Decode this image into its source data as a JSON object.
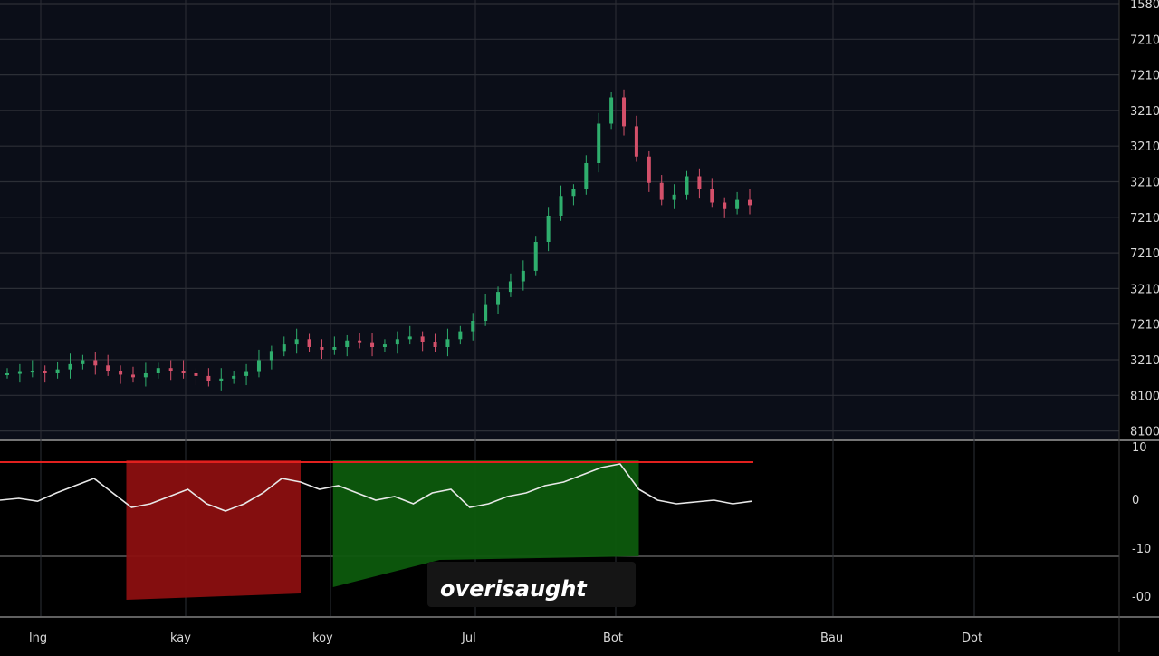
{
  "colors": {
    "background": "#000000",
    "price_panel_bg": "#0b0e18",
    "grid": "#2c2f36",
    "candle_up": "#2fae6d",
    "candle_down": "#d4506a",
    "oscillator_line": "#e8e8e8",
    "overbought_level": "#e0201e",
    "red_zone": "#8b0f10",
    "green_zone": "#0d5a0d",
    "tag_bg": "#151515",
    "axis_text": "#d9d9d9"
  },
  "chart_data": [
    {
      "type": "candlestick",
      "panel": "price",
      "price_axis_labels": [
        "1580",
        "7210",
        "7210",
        "3210",
        "3210",
        "3210",
        "7210",
        "7210",
        "3210",
        "7210",
        "3210",
        "8100",
        "8100"
      ],
      "close_trend": [
        40,
        41,
        42,
        40,
        43,
        47,
        50,
        46,
        42,
        39,
        37,
        40,
        44,
        42,
        40,
        38,
        34,
        36,
        38,
        41,
        50,
        57,
        62,
        66,
        60,
        58,
        60,
        65,
        63,
        60,
        62,
        66,
        68,
        64,
        60,
        66,
        72,
        80,
        92,
        102,
        110,
        118,
        140,
        160,
        175,
        180,
        200,
        230,
        250,
        228,
        205,
        185,
        172,
        176,
        190,
        180,
        170,
        165,
        172,
        168
      ],
      "x_axis_labels": [
        "lng",
        "kay",
        "koy",
        "Jul",
        "Bot",
        "Bau",
        "Dot"
      ]
    },
    {
      "type": "line",
      "panel": "oscillator",
      "oscillator_axis_labels": [
        "10",
        "0",
        "-10",
        "-00"
      ],
      "overbought_level": 10,
      "values": [
        0,
        0.5,
        -0.3,
        2,
        4,
        6,
        2,
        -2,
        -1,
        1,
        3,
        -1,
        -3,
        -1,
        2,
        6,
        5,
        3,
        4,
        2,
        0,
        1,
        -1,
        2,
        3,
        -2,
        -1,
        1,
        2,
        4,
        5,
        7,
        9,
        10,
        3,
        0,
        -1,
        -0.5,
        0,
        -1,
        -0.3
      ],
      "zones": [
        {
          "kind": "red",
          "from_index": 6,
          "to_index": 16
        },
        {
          "kind": "green",
          "from_index": 17,
          "to_index": 34
        }
      ]
    }
  ],
  "annotation": {
    "label": "overisaught"
  }
}
